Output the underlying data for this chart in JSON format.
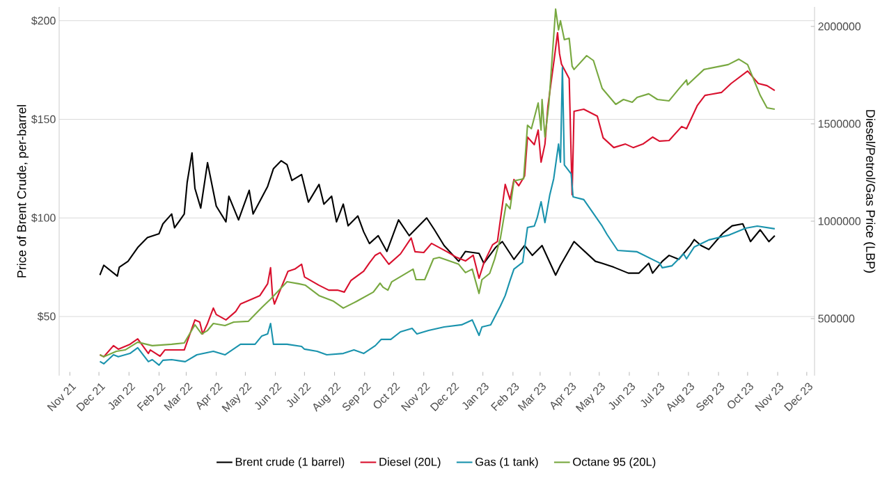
{
  "chart_data": {
    "type": "line",
    "ylabel": "Price of Brent Crude, per-barrel",
    "y2label": "Diesel/Petrol/Gas Price (LBP)",
    "xlim": [
      "2021-10-21",
      "2023-12-09"
    ],
    "xticks": [
      {
        "value": "2021-11-01",
        "label": "Nov 21"
      },
      {
        "value": "2021-12-01",
        "label": "Dec 21"
      },
      {
        "value": "2022-01-01",
        "label": "Jan 22"
      },
      {
        "value": "2022-02-01",
        "label": "Feb 22"
      },
      {
        "value": "2022-03-01",
        "label": "Mar 22"
      },
      {
        "value": "2022-04-01",
        "label": "Apr 22"
      },
      {
        "value": "2022-05-01",
        "label": "May 22"
      },
      {
        "value": "2022-06-01",
        "label": "Jun 22"
      },
      {
        "value": "2022-07-01",
        "label": "Jul 22"
      },
      {
        "value": "2022-08-01",
        "label": "Aug 22"
      },
      {
        "value": "2022-09-01",
        "label": "Sep 22"
      },
      {
        "value": "2022-10-01",
        "label": "Oct 22"
      },
      {
        "value": "2022-11-01",
        "label": "Nov 22"
      },
      {
        "value": "2022-12-01",
        "label": "Dec 22"
      },
      {
        "value": "2023-01-01",
        "label": "Jan 23"
      },
      {
        "value": "2023-02-01",
        "label": "Feb 23"
      },
      {
        "value": "2023-03-01",
        "label": "Mar 23"
      },
      {
        "value": "2023-04-01",
        "label": "Apr 23"
      },
      {
        "value": "2023-05-01",
        "label": "May 23"
      },
      {
        "value": "2023-06-01",
        "label": "Jun 23"
      },
      {
        "value": "2023-07-01",
        "label": "Jul 23"
      },
      {
        "value": "2023-08-01",
        "label": "Aug 23"
      },
      {
        "value": "2023-09-01",
        "label": "Sep 23"
      },
      {
        "value": "2023-10-01",
        "label": "Oct 23"
      },
      {
        "value": "2023-11-01",
        "label": "Nov 23"
      },
      {
        "value": "2023-12-01",
        "label": "Dec 23"
      }
    ],
    "ylim": [
      20,
      207
    ],
    "yticks": [
      {
        "value": 50,
        "label": "$50"
      },
      {
        "value": 100,
        "label": "$100"
      },
      {
        "value": 150,
        "label": "$150"
      },
      {
        "value": 200,
        "label": "$200"
      }
    ],
    "y2lim": [
      207000,
      2100000
    ],
    "y2ticks": [
      500000,
      1000000,
      1500000,
      2000000
    ],
    "grid": "y",
    "legend": "bottom",
    "marker": "none",
    "line_style": "solid",
    "series": [
      {
        "name": "Brent crude (1 barrel)",
        "color": "#000000",
        "x": [
          "2021-12-02",
          "2021-12-06",
          "2021-12-20",
          "2021-12-22",
          "2021-12-31",
          "2022-01-10",
          "2022-01-20",
          "2022-02-01",
          "2022-02-05",
          "2022-02-14",
          "2022-02-17",
          "2022-02-27",
          "2022-03-02",
          "2022-03-07",
          "2022-03-10",
          "2022-03-16",
          "2022-03-23",
          "2022-04-01",
          "2022-04-11",
          "2022-04-14",
          "2022-04-24",
          "2022-05-05",
          "2022-05-09",
          "2022-05-24",
          "2022-05-30",
          "2022-06-07",
          "2022-06-13",
          "2022-06-18",
          "2022-06-28",
          "2022-07-05",
          "2022-07-16",
          "2022-07-21",
          "2022-07-29",
          "2022-08-03",
          "2022-08-10",
          "2022-08-15",
          "2022-08-25",
          "2022-08-31",
          "2022-09-06",
          "2022-09-15",
          "2022-09-24",
          "2022-10-06",
          "2022-10-17",
          "2022-11-04",
          "2022-11-12",
          "2022-11-22",
          "2022-12-07",
          "2022-12-14",
          "2022-12-28",
          "2023-01-02",
          "2023-01-14",
          "2023-01-21",
          "2023-02-02",
          "2023-02-13",
          "2023-02-21",
          "2023-03-03",
          "2023-03-17",
          "2023-03-22",
          "2023-04-05",
          "2023-04-27",
          "2023-05-04",
          "2023-05-16",
          "2023-05-31",
          "2023-06-11",
          "2023-06-21",
          "2023-06-25",
          "2023-07-05",
          "2023-07-12",
          "2023-07-22",
          "2023-08-03",
          "2023-08-07",
          "2023-08-14",
          "2023-08-22",
          "2023-09-05",
          "2023-09-15",
          "2023-09-26",
          "2023-10-04",
          "2023-10-14",
          "2023-10-23",
          "2023-10-29"
        ],
        "values": [
          71,
          76,
          70.5,
          75,
          78,
          85,
          90,
          92,
          97,
          102,
          95,
          102,
          118,
          133,
          115,
          105,
          128,
          106,
          98,
          111,
          99,
          114,
          102,
          116,
          125,
          129,
          127,
          119,
          122,
          108,
          117,
          107,
          111,
          98,
          107,
          96,
          101,
          93,
          87,
          91,
          83,
          99,
          91,
          100,
          94,
          86,
          78,
          83,
          82,
          77,
          85,
          88,
          79,
          86,
          81,
          86,
          71,
          76,
          88,
          78,
          77,
          75,
          72,
          72,
          77,
          72,
          78,
          81,
          79,
          86,
          89,
          86,
          84,
          92,
          96,
          97,
          88,
          94,
          88,
          91
        ]
      },
      {
        "name": "Diesel (20L)",
        "color": "#d9112e",
        "axis": "y2",
        "x": [
          "2021-12-02",
          "2021-12-06",
          "2021-12-16",
          "2021-12-21",
          "2022-01-02",
          "2022-01-10",
          "2022-01-21",
          "2022-01-23",
          "2022-02-02",
          "2022-02-07",
          "2022-02-27",
          "2022-03-10",
          "2022-03-15",
          "2022-03-18",
          "2022-03-23",
          "2022-03-29",
          "2022-04-01",
          "2022-04-11",
          "2022-04-21",
          "2022-04-26",
          "2022-05-16",
          "2022-05-24",
          "2022-05-27",
          "2022-05-29",
          "2022-05-31",
          "2022-06-14",
          "2022-06-21",
          "2022-06-28",
          "2022-07-01",
          "2022-07-16",
          "2022-07-26",
          "2022-08-04",
          "2022-08-11",
          "2022-08-18",
          "2022-08-31",
          "2022-09-06",
          "2022-09-12",
          "2022-09-17",
          "2022-09-26",
          "2022-10-08",
          "2022-10-19",
          "2022-10-23",
          "2022-11-01",
          "2022-11-09",
          "2022-11-25",
          "2022-12-05",
          "2022-12-14",
          "2022-12-22",
          "2022-12-28",
          "2023-01-02",
          "2023-01-11",
          "2023-01-16",
          "2023-01-24",
          "2023-01-29",
          "2023-02-02",
          "2023-02-07",
          "2023-02-13",
          "2023-02-16",
          "2023-02-23",
          "2023-02-27",
          "2023-03-02",
          "2023-03-06",
          "2023-03-09",
          "2023-03-16",
          "2023-03-19",
          "2023-03-21",
          "2023-03-23",
          "2023-03-31",
          "2023-04-03",
          "2023-04-05",
          "2023-04-15",
          "2023-04-29",
          "2023-05-05",
          "2023-05-16",
          "2023-05-28",
          "2023-06-05",
          "2023-06-15",
          "2023-06-25",
          "2023-07-02",
          "2023-07-12",
          "2023-07-25",
          "2023-07-30",
          "2023-08-10",
          "2023-08-18",
          "2023-09-04",
          "2023-09-14",
          "2023-10-01",
          "2023-10-12",
          "2023-10-21",
          "2023-10-29"
        ],
        "values": [
          314000,
          304000,
          361000,
          343000,
          368000,
          396000,
          321000,
          339000,
          307000,
          339000,
          339000,
          493000,
          482000,
          421000,
          475000,
          554000,
          521000,
          493000,
          536000,
          575000,
          618000,
          679000,
          761000,
          618000,
          575000,
          743000,
          754000,
          779000,
          714000,
          671000,
          646000,
          646000,
          636000,
          696000,
          743000,
          786000,
          825000,
          839000,
          779000,
          832000,
          914000,
          843000,
          839000,
          886000,
          843000,
          814000,
          796000,
          825000,
          707000,
          786000,
          879000,
          896000,
          1189000,
          1111000,
          1214000,
          1182000,
          1232000,
          1432000,
          1393000,
          1468000,
          1303000,
          1396000,
          1589000,
          1850000,
          1968000,
          1861000,
          1807000,
          1732000,
          1136000,
          1564000,
          1575000,
          1539000,
          1428000,
          1378000,
          1396000,
          1378000,
          1396000,
          1432000,
          1411000,
          1414000,
          1486000,
          1475000,
          1593000,
          1646000,
          1661000,
          1707000,
          1771000,
          1707000,
          1696000,
          1671000
        ]
      },
      {
        "name": "Gas (1 tank)",
        "color": "#1a93ad",
        "axis": "y2",
        "x": [
          "2021-12-02",
          "2021-12-06",
          "2021-12-16",
          "2021-12-21",
          "2022-01-02",
          "2022-01-10",
          "2022-01-21",
          "2022-01-25",
          "2022-02-01",
          "2022-02-05",
          "2022-02-14",
          "2022-02-28",
          "2022-03-12",
          "2022-03-29",
          "2022-04-10",
          "2022-04-26",
          "2022-05-11",
          "2022-05-18",
          "2022-05-24",
          "2022-05-27",
          "2022-05-30",
          "2022-06-13",
          "2022-06-28",
          "2022-07-01",
          "2022-07-14",
          "2022-07-24",
          "2022-08-10",
          "2022-08-21",
          "2022-08-31",
          "2022-09-12",
          "2022-09-18",
          "2022-09-28",
          "2022-10-08",
          "2022-10-20",
          "2022-10-25",
          "2022-11-06",
          "2022-11-22",
          "2022-12-10",
          "2022-12-21",
          "2022-12-28",
          "2022-12-31",
          "2023-01-09",
          "2023-01-19",
          "2023-01-24",
          "2023-01-29",
          "2023-02-02",
          "2023-02-11",
          "2023-02-16",
          "2023-02-23",
          "2023-02-26",
          "2023-03-02",
          "2023-03-06",
          "2023-03-11",
          "2023-03-15",
          "2023-03-20",
          "2023-03-22",
          "2023-03-24",
          "2023-03-26",
          "2023-04-02",
          "2023-04-04",
          "2023-04-15",
          "2023-05-04",
          "2023-05-09",
          "2023-05-20",
          "2023-06-09",
          "2023-07-02",
          "2023-07-05",
          "2023-07-15",
          "2023-07-27",
          "2023-07-30",
          "2023-08-07",
          "2023-08-22",
          "2023-09-12",
          "2023-09-29",
          "2023-10-11",
          "2023-10-29"
        ],
        "values": [
          280000,
          268000,
          314000,
          304000,
          321000,
          350000,
          279000,
          289000,
          261000,
          286000,
          289000,
          279000,
          314000,
          332000,
          314000,
          368000,
          368000,
          411000,
          421000,
          475000,
          368000,
          368000,
          357000,
          343000,
          332000,
          314000,
          321000,
          339000,
          321000,
          361000,
          393000,
          393000,
          432000,
          450000,
          421000,
          439000,
          457000,
          468000,
          493000,
          414000,
          457000,
          468000,
          564000,
          618000,
          696000,
          754000,
          789000,
          968000,
          975000,
          1018000,
          1100000,
          993000,
          1136000,
          1218000,
          1396000,
          1303000,
          1789000,
          1289000,
          1243000,
          1125000,
          1111000,
          975000,
          932000,
          850000,
          843000,
          786000,
          761000,
          771000,
          832000,
          807000,
          868000,
          904000,
          929000,
          964000,
          975000,
          961000
        ]
      },
      {
        "name": "Octane 95 (20L)",
        "color": "#78a840",
        "axis": "y2",
        "x": [
          "2021-12-02",
          "2021-12-06",
          "2021-12-19",
          "2021-12-28",
          "2022-01-10",
          "2022-01-25",
          "2022-02-14",
          "2022-02-27",
          "2022-03-10",
          "2022-03-17",
          "2022-03-23",
          "2022-03-29",
          "2022-04-10",
          "2022-04-19",
          "2022-05-04",
          "2022-05-18",
          "2022-05-27",
          "2022-06-13",
          "2022-06-25",
          "2022-07-02",
          "2022-07-16",
          "2022-07-31",
          "2022-08-10",
          "2022-08-24",
          "2022-09-10",
          "2022-09-17",
          "2022-09-20",
          "2022-09-25",
          "2022-09-29",
          "2022-10-15",
          "2022-10-21",
          "2022-10-24",
          "2022-11-02",
          "2022-11-11",
          "2022-11-17",
          "2022-12-07",
          "2022-12-14",
          "2022-12-21",
          "2022-12-28",
          "2022-12-31",
          "2023-01-08",
          "2023-01-13",
          "2023-01-19",
          "2023-01-25",
          "2023-01-29",
          "2023-02-02",
          "2023-02-12",
          "2023-02-16",
          "2023-02-20",
          "2023-02-27",
          "2023-03-02",
          "2023-03-03",
          "2023-03-06",
          "2023-03-10",
          "2023-03-17",
          "2023-03-20",
          "2023-03-22",
          "2023-03-26",
          "2023-03-31",
          "2023-04-03",
          "2023-04-05",
          "2023-04-18",
          "2023-04-25",
          "2023-05-04",
          "2023-05-18",
          "2023-05-26",
          "2023-06-04",
          "2023-06-09",
          "2023-06-21",
          "2023-06-30",
          "2023-07-12",
          "2023-07-22",
          "2023-07-30",
          "2023-07-31",
          "2023-08-17",
          "2023-09-03",
          "2023-09-11",
          "2023-09-22",
          "2023-10-01",
          "2023-10-14",
          "2023-10-21",
          "2023-10-29"
        ],
        "values": [
          314000,
          304000,
          332000,
          339000,
          379000,
          361000,
          368000,
          375000,
          468000,
          421000,
          439000,
          475000,
          464000,
          482000,
          486000,
          557000,
          600000,
          689000,
          679000,
          671000,
          618000,
          589000,
          554000,
          589000,
          636000,
          682000,
          661000,
          646000,
          689000,
          736000,
          754000,
          700000,
          700000,
          807000,
          814000,
          779000,
          736000,
          754000,
          629000,
          700000,
          732000,
          804000,
          911000,
          1089000,
          1064000,
          1207000,
          1218000,
          1493000,
          1475000,
          1607000,
          1468000,
          1625000,
          1432000,
          1600000,
          2089000,
          1982000,
          2029000,
          1932000,
          1939000,
          1796000,
          1779000,
          1850000,
          1825000,
          1682000,
          1600000,
          1625000,
          1611000,
          1636000,
          1654000,
          1625000,
          1618000,
          1679000,
          1725000,
          1700000,
          1779000,
          1796000,
          1804000,
          1832000,
          1804000,
          1646000,
          1582000,
          1575000
        ]
      }
    ]
  }
}
